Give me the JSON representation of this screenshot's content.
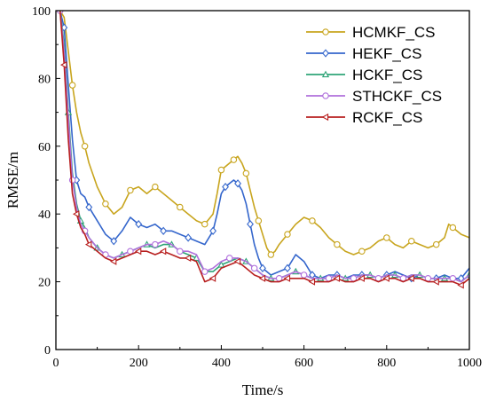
{
  "chart_data": {
    "type": "line",
    "xlabel": "Time/s",
    "ylabel": "RMSE/m",
    "xlim": [
      0,
      1000
    ],
    "ylim": [
      0,
      100
    ],
    "xticks": [
      0,
      200,
      400,
      600,
      800,
      1000
    ],
    "yticks": [
      0,
      20,
      40,
      60,
      80,
      100
    ],
    "grid": false,
    "legend_position": "top-right",
    "series": [
      {
        "name": "HCMKF_CS",
        "color": "#C8A51E",
        "marker": "circle",
        "x": [
          10,
          20,
          30,
          40,
          50,
          60,
          70,
          80,
          100,
          120,
          140,
          160,
          180,
          200,
          220,
          240,
          260,
          280,
          300,
          320,
          340,
          360,
          380,
          390,
          400,
          410,
          420,
          430,
          440,
          450,
          460,
          470,
          480,
          490,
          500,
          510,
          520,
          530,
          540,
          560,
          580,
          600,
          620,
          640,
          660,
          680,
          700,
          720,
          740,
          760,
          780,
          800,
          820,
          840,
          860,
          880,
          900,
          920,
          940,
          950,
          960,
          980,
          1000
        ],
        "y": [
          100,
          98,
          88,
          78,
          70,
          64,
          60,
          55,
          48,
          43,
          40,
          42,
          47,
          48,
          46,
          48,
          46,
          44,
          42,
          40,
          38,
          37,
          40,
          46,
          53,
          54,
          55,
          56,
          57,
          55,
          52,
          47,
          42,
          38,
          34,
          30,
          28,
          29,
          31,
          34,
          37,
          39,
          38,
          36,
          33,
          31,
          29,
          28,
          29,
          30,
          32,
          33,
          31,
          30,
          32,
          31,
          30,
          31,
          33,
          37,
          36,
          34,
          33
        ]
      },
      {
        "name": "HEKF_CS",
        "color": "#3466CC",
        "marker": "diamond",
        "x": [
          10,
          20,
          30,
          40,
          50,
          60,
          70,
          80,
          100,
          120,
          140,
          160,
          180,
          200,
          220,
          240,
          260,
          280,
          300,
          320,
          340,
          360,
          380,
          390,
          400,
          410,
          420,
          430,
          440,
          450,
          460,
          470,
          480,
          490,
          500,
          520,
          540,
          560,
          580,
          600,
          620,
          640,
          660,
          680,
          700,
          720,
          740,
          760,
          780,
          800,
          820,
          840,
          860,
          880,
          900,
          920,
          940,
          960,
          980,
          1000
        ],
        "y": [
          100,
          95,
          78,
          62,
          50,
          46,
          45,
          42,
          38,
          34,
          32,
          35,
          39,
          37,
          36,
          37,
          35,
          35,
          34,
          33,
          32,
          31,
          35,
          40,
          46,
          48,
          49,
          50,
          49,
          47,
          43,
          37,
          31,
          27,
          24,
          22,
          23,
          24,
          28,
          26,
          22,
          21,
          22,
          22,
          21,
          22,
          22,
          22,
          21,
          22,
          23,
          22,
          21,
          22,
          21,
          21,
          22,
          21,
          21,
          24
        ]
      },
      {
        "name": "HCKF_CS",
        "color": "#2FA478",
        "marker": "triangle",
        "x": [
          10,
          20,
          30,
          40,
          50,
          60,
          70,
          80,
          100,
          120,
          140,
          160,
          180,
          200,
          220,
          240,
          260,
          280,
          300,
          320,
          340,
          360,
          380,
          400,
          420,
          440,
          460,
          480,
          500,
          520,
          540,
          560,
          580,
          600,
          620,
          640,
          660,
          680,
          700,
          720,
          740,
          760,
          780,
          800,
          820,
          840,
          860,
          880,
          900,
          920,
          940,
          960,
          980,
          1000
        ],
        "y": [
          100,
          90,
          70,
          52,
          43,
          38,
          36,
          33,
          30,
          28,
          27,
          28,
          29,
          30,
          31,
          30,
          31,
          31,
          29,
          28,
          27,
          23,
          23,
          25,
          26,
          27,
          26,
          24,
          22,
          21,
          21,
          22,
          23,
          22,
          21,
          21,
          21,
          22,
          21,
          21,
          22,
          22,
          21,
          22,
          22,
          21,
          22,
          22,
          21,
          21,
          21,
          21,
          20,
          22
        ]
      },
      {
        "name": "STHCKF_CS",
        "color": "#B070DC",
        "marker": "circle",
        "x": [
          10,
          20,
          30,
          40,
          50,
          60,
          70,
          80,
          100,
          120,
          140,
          160,
          180,
          200,
          220,
          240,
          260,
          280,
          300,
          320,
          340,
          360,
          380,
          400,
          420,
          440,
          460,
          480,
          500,
          520,
          540,
          560,
          580,
          600,
          620,
          640,
          660,
          680,
          700,
          720,
          740,
          760,
          780,
          800,
          820,
          840,
          860,
          880,
          900,
          920,
          940,
          960,
          980,
          1000
        ],
        "y": [
          100,
          88,
          68,
          50,
          42,
          37,
          35,
          33,
          30,
          28,
          27,
          28,
          29,
          30,
          31,
          31,
          32,
          31,
          29,
          29,
          28,
          23,
          24,
          26,
          27,
          27,
          26,
          24,
          22,
          21,
          21,
          22,
          23,
          22,
          21,
          21,
          21,
          22,
          21,
          21,
          22,
          22,
          21,
          22,
          22,
          21,
          22,
          22,
          21,
          21,
          21,
          21,
          20,
          22
        ]
      },
      {
        "name": "RCKF_CS",
        "color": "#B82020",
        "marker": "triangle-left",
        "x": [
          10,
          20,
          30,
          40,
          50,
          60,
          70,
          80,
          100,
          120,
          140,
          160,
          180,
          200,
          220,
          240,
          260,
          280,
          300,
          320,
          340,
          360,
          380,
          400,
          420,
          440,
          460,
          480,
          500,
          520,
          540,
          560,
          580,
          600,
          620,
          640,
          660,
          680,
          700,
          720,
          740,
          760,
          780,
          800,
          820,
          840,
          860,
          880,
          900,
          920,
          940,
          960,
          980,
          1000
        ],
        "y": [
          100,
          84,
          62,
          46,
          40,
          36,
          34,
          31,
          29,
          27,
          26,
          27,
          28,
          29,
          29,
          28,
          29,
          28,
          27,
          27,
          26,
          20,
          21,
          24,
          25,
          26,
          24,
          22,
          21,
          20,
          20,
          21,
          21,
          21,
          20,
          20,
          20,
          21,
          20,
          20,
          21,
          21,
          20,
          21,
          21,
          20,
          21,
          21,
          20,
          20,
          20,
          20,
          19,
          21
        ]
      }
    ]
  }
}
